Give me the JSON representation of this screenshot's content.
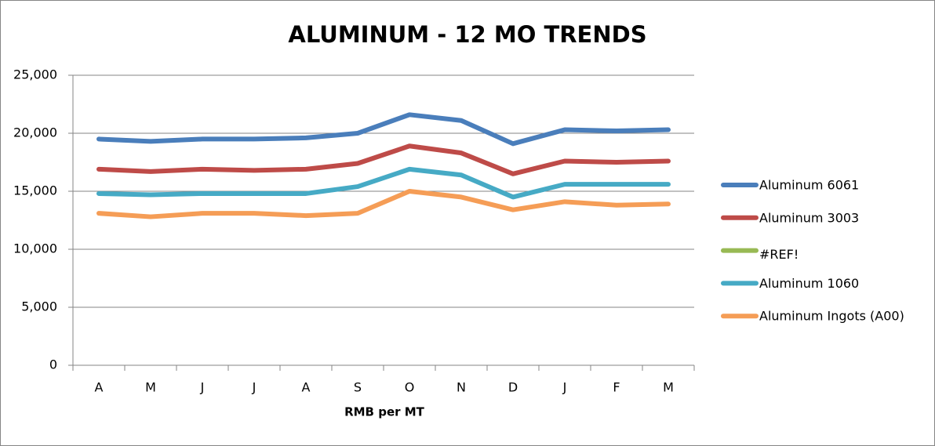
{
  "chart_data": {
    "type": "line",
    "title": "ALUMINUM - 12 MO TRENDS",
    "x_label": "RMB per MT",
    "categories": [
      "A",
      "M",
      "J",
      "J",
      "A",
      "S",
      "O",
      "N",
      "D",
      "J",
      "F",
      "M"
    ],
    "series": [
      {
        "name": "Aluminum 6061",
        "color": "#4a7ebb",
        "values": [
          19500,
          19300,
          19500,
          19500,
          19600,
          20000,
          21600,
          21100,
          19100,
          20300,
          20200,
          20300
        ]
      },
      {
        "name": "Aluminum 3003",
        "color": "#be4b48",
        "values": [
          16900,
          16700,
          16900,
          16800,
          16900,
          17400,
          18900,
          18300,
          16500,
          17600,
          17500,
          17600
        ]
      },
      {
        "name": "#REF!",
        "color": "#98b954",
        "values": [
          null,
          null,
          null,
          null,
          null,
          null,
          null,
          null,
          null,
          null,
          null,
          null
        ]
      },
      {
        "name": "Aluminum 1060",
        "color": "#46aac5",
        "values": [
          14800,
          14700,
          14800,
          14800,
          14800,
          15400,
          16900,
          16400,
          14500,
          15600,
          15600,
          15600
        ]
      },
      {
        "name": "Aluminum Ingots (A00)",
        "color": "#f59d56",
        "values": [
          13100,
          12800,
          13100,
          13100,
          12900,
          13100,
          15000,
          14500,
          13400,
          14100,
          13800,
          13900
        ]
      }
    ],
    "ylim": [
      0,
      25000
    ],
    "yticks": [
      0,
      {
        "value": 5000,
        "label": "5,000"
      },
      {
        "value": 10000,
        "label": "10,000"
      },
      {
        "value": 15000,
        "label": "15,000"
      },
      {
        "value": 20000,
        "label": "20,000"
      },
      {
        "value": 25000,
        "label": "25,000"
      }
    ],
    "grid": true,
    "legend": "right"
  }
}
